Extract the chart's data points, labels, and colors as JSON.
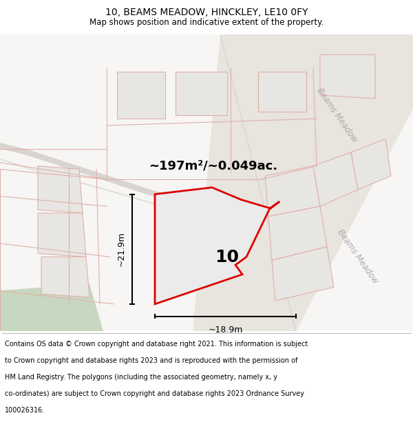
{
  "title": "10, BEAMS MEADOW, HINCKLEY, LE10 0FY",
  "subtitle": "Map shows position and indicative extent of the property.",
  "area_text": "~197m²/~0.049ac.",
  "label_10": "10",
  "dim_vertical": "~21.9m",
  "dim_horizontal": "~18.9m",
  "footer_lines": [
    "Contains OS data © Crown copyright and database right 2021. This information is subject",
    "to Crown copyright and database rights 2023 and is reproduced with the permission of",
    "HM Land Registry. The polygons (including the associated geometry, namely x, y",
    "co-ordinates) are subject to Crown copyright and database rights 2023 Ordnance Survey",
    "100026316."
  ],
  "bg_color": "#ffffff",
  "map_bg": "#f7f6f4",
  "plot_gray": "#e8e6e2",
  "plot_edge": "#e0b0aa",
  "road_gray": "#d8d5d0",
  "red_color": "#dd0000",
  "dim_line_color": "#444444",
  "road_label_color": "#aaaaaa",
  "green_color": "#c8d8c0",
  "beams_road_fill": "#e8e4de"
}
